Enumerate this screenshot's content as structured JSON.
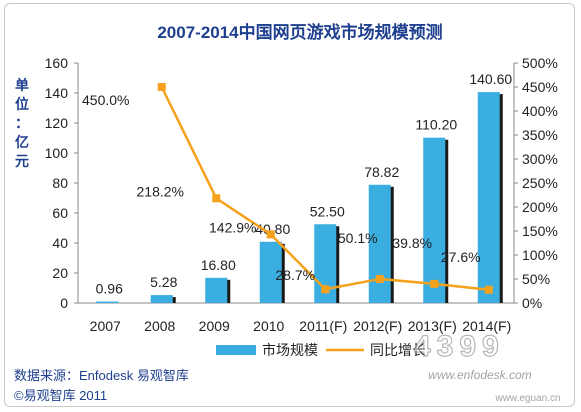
{
  "chart_data": {
    "type": "bar",
    "title": "2007-2014中国网页游戏市场规模预测",
    "ylabel": "单位：亿元",
    "ylim": [
      0,
      160
    ],
    "yticks": [
      "0",
      "20",
      "40",
      "60",
      "80",
      "100",
      "120",
      "140",
      "160"
    ],
    "y2lim": [
      0,
      500
    ],
    "y2ticks": [
      "0%",
      "50%",
      "100%",
      "150%",
      "200%",
      "250%",
      "300%",
      "350%",
      "400%",
      "450%",
      "500%"
    ],
    "categories": [
      "2007",
      "2008",
      "2009",
      "2010",
      "2011(F)",
      "2012(F)",
      "2013(F)",
      "2014(F)"
    ],
    "series": [
      {
        "name": "市场规模",
        "type": "bar",
        "axis": "left",
        "color": "#3aaee1",
        "values": [
          0.96,
          5.28,
          16.8,
          40.8,
          52.5,
          78.82,
          110.2,
          140.6
        ],
        "labels": [
          "0.96",
          "5.28",
          "16.80",
          "40.80",
          "52.50",
          "78.82",
          "110.20",
          "140.60"
        ]
      },
      {
        "name": "同比增长",
        "type": "line",
        "axis": "right",
        "color": "#f5a11b",
        "values": [
          null,
          450.0,
          218.2,
          142.9,
          28.7,
          50.1,
          39.8,
          27.6
        ],
        "labels": [
          "",
          "450.0%",
          "218.2%",
          "142.9%",
          "28.7%",
          "50.1%",
          "39.8%",
          "27.6%"
        ]
      }
    ],
    "legend_position": "bottom",
    "grid": false
  },
  "footer": {
    "source": "数据来源：Enfodesk 易观智库",
    "copyright": "©易观智库 2011"
  },
  "watermark": {
    "url1": "www.enfodesk.com",
    "url2": "www.eguan.cn",
    "logo_text": "4399"
  }
}
